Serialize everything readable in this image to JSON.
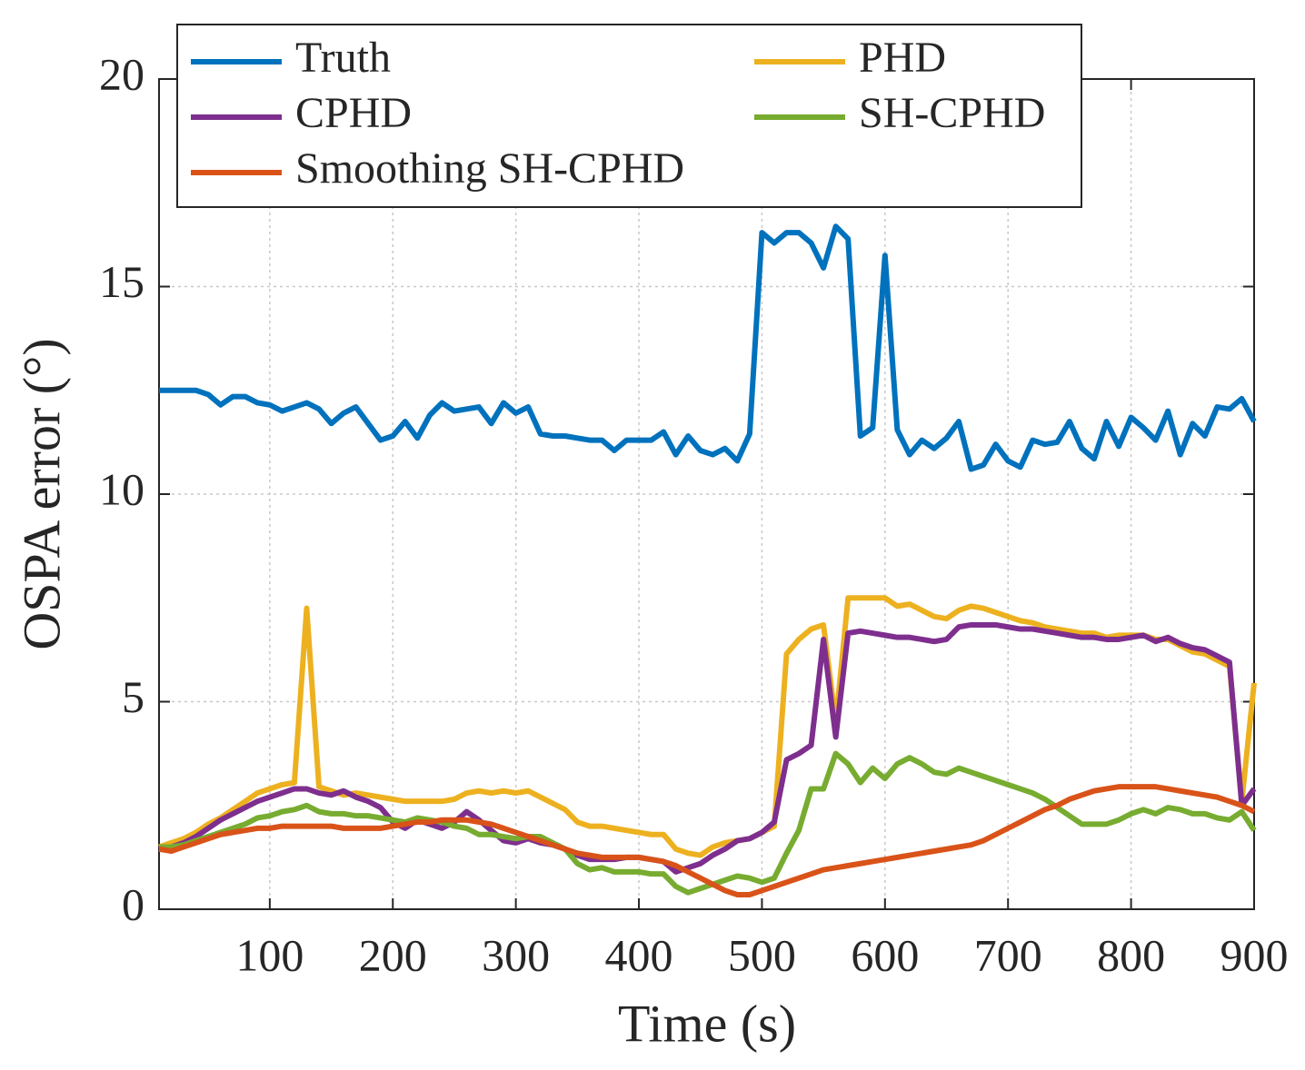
{
  "chart_data": {
    "type": "line",
    "xlabel": "Time (s)",
    "ylabel": "OSPA error (°)",
    "x": [
      10,
      20,
      30,
      40,
      50,
      60,
      70,
      80,
      90,
      100,
      110,
      120,
      130,
      140,
      150,
      160,
      170,
      180,
      190,
      200,
      210,
      220,
      230,
      240,
      250,
      260,
      270,
      280,
      290,
      300,
      310,
      320,
      330,
      340,
      350,
      360,
      370,
      380,
      390,
      400,
      410,
      420,
      430,
      440,
      450,
      460,
      470,
      480,
      490,
      500,
      510,
      520,
      530,
      540,
      550,
      560,
      570,
      580,
      590,
      600,
      610,
      620,
      630,
      640,
      650,
      660,
      670,
      680,
      690,
      700,
      710,
      720,
      730,
      740,
      750,
      760,
      770,
      780,
      790,
      800,
      810,
      820,
      830,
      840,
      850,
      860,
      870,
      880,
      890,
      900
    ],
    "series": [
      {
        "name": "Truth",
        "color": "#0072bd",
        "values": [
          12.5,
          12.5,
          12.5,
          12.5,
          12.4,
          12.15,
          12.35,
          12.35,
          12.2,
          12.15,
          12.0,
          12.1,
          12.2,
          12.05,
          11.7,
          11.95,
          12.1,
          11.7,
          11.3,
          11.4,
          11.75,
          11.35,
          11.9,
          12.2,
          12.0,
          12.05,
          12.1,
          11.7,
          12.2,
          11.95,
          12.1,
          11.45,
          11.4,
          11.4,
          11.35,
          11.3,
          11.3,
          11.05,
          11.3,
          11.3,
          11.3,
          11.5,
          10.95,
          11.4,
          11.05,
          10.95,
          11.1,
          10.8,
          11.45,
          16.3,
          16.05,
          16.3,
          16.3,
          16.05,
          15.45,
          16.45,
          16.15,
          11.4,
          11.6,
          15.75,
          11.55,
          10.95,
          11.3,
          11.1,
          11.35,
          11.75,
          10.6,
          10.7,
          11.2,
          10.8,
          10.65,
          11.3,
          11.2,
          11.25,
          11.75,
          11.1,
          10.85,
          11.75,
          11.15,
          11.85,
          11.6,
          11.3,
          12.0,
          10.95,
          11.7,
          11.4,
          12.1,
          12.05,
          12.3,
          11.75
        ]
      },
      {
        "name": "PHD",
        "color": "#edb120",
        "values": [
          1.5,
          1.6,
          1.7,
          1.85,
          2.05,
          2.2,
          2.4,
          2.6,
          2.8,
          2.9,
          3.0,
          3.05,
          7.25,
          2.95,
          2.85,
          2.75,
          2.8,
          2.75,
          2.7,
          2.65,
          2.6,
          2.6,
          2.6,
          2.6,
          2.65,
          2.8,
          2.85,
          2.8,
          2.85,
          2.8,
          2.85,
          2.7,
          2.55,
          2.4,
          2.1,
          2.0,
          2.0,
          1.95,
          1.9,
          1.85,
          1.8,
          1.8,
          1.45,
          1.35,
          1.3,
          1.5,
          1.6,
          1.65,
          1.7,
          1.85,
          2.0,
          6.15,
          6.5,
          6.75,
          6.85,
          4.5,
          7.5,
          7.5,
          7.5,
          7.5,
          7.3,
          7.35,
          7.2,
          7.05,
          7.0,
          7.2,
          7.3,
          7.25,
          7.15,
          7.05,
          6.95,
          6.9,
          6.8,
          6.75,
          6.7,
          6.65,
          6.65,
          6.55,
          6.6,
          6.6,
          6.6,
          6.5,
          6.5,
          6.35,
          6.2,
          6.15,
          6.0,
          5.85,
          2.6,
          5.45
        ]
      },
      {
        "name": "CPHD",
        "color": "#7e2f8e",
        "values": [
          1.45,
          1.5,
          1.6,
          1.75,
          1.95,
          2.15,
          2.3,
          2.45,
          2.6,
          2.7,
          2.8,
          2.9,
          2.9,
          2.8,
          2.75,
          2.85,
          2.7,
          2.6,
          2.45,
          2.1,
          1.95,
          2.15,
          2.05,
          1.95,
          2.1,
          2.35,
          2.15,
          1.9,
          1.65,
          1.6,
          1.7,
          1.6,
          1.55,
          1.45,
          1.3,
          1.2,
          1.2,
          1.2,
          1.25,
          1.25,
          1.2,
          1.15,
          0.9,
          1.0,
          1.1,
          1.3,
          1.45,
          1.65,
          1.7,
          1.85,
          2.1,
          3.6,
          3.75,
          3.95,
          6.5,
          4.15,
          6.65,
          6.7,
          6.65,
          6.6,
          6.55,
          6.55,
          6.5,
          6.45,
          6.5,
          6.8,
          6.85,
          6.85,
          6.85,
          6.8,
          6.75,
          6.75,
          6.7,
          6.65,
          6.6,
          6.55,
          6.55,
          6.5,
          6.5,
          6.55,
          6.6,
          6.45,
          6.55,
          6.4,
          6.3,
          6.25,
          6.1,
          5.95,
          2.5,
          2.9
        ]
      },
      {
        "name": "SH-CPHD",
        "color": "#77ac30",
        "values": [
          1.5,
          1.5,
          1.55,
          1.65,
          1.75,
          1.85,
          1.95,
          2.05,
          2.2,
          2.25,
          2.35,
          2.4,
          2.5,
          2.35,
          2.3,
          2.3,
          2.25,
          2.25,
          2.2,
          2.15,
          2.1,
          2.2,
          2.15,
          2.1,
          2.0,
          1.95,
          1.8,
          1.8,
          1.75,
          1.7,
          1.75,
          1.75,
          1.6,
          1.45,
          1.1,
          0.95,
          1.0,
          0.9,
          0.9,
          0.9,
          0.85,
          0.85,
          0.55,
          0.4,
          0.5,
          0.6,
          0.7,
          0.8,
          0.75,
          0.65,
          0.75,
          1.35,
          1.9,
          2.9,
          2.9,
          3.75,
          3.5,
          3.05,
          3.4,
          3.15,
          3.5,
          3.65,
          3.5,
          3.3,
          3.25,
          3.4,
          3.3,
          3.2,
          3.1,
          3.0,
          2.9,
          2.8,
          2.65,
          2.45,
          2.25,
          2.05,
          2.05,
          2.05,
          2.15,
          2.3,
          2.4,
          2.3,
          2.45,
          2.4,
          2.3,
          2.3,
          2.2,
          2.15,
          2.35,
          1.9
        ]
      },
      {
        "name": "Smoothing SH-CPHD",
        "color": "#d95319",
        "values": [
          1.45,
          1.4,
          1.5,
          1.6,
          1.7,
          1.8,
          1.85,
          1.9,
          1.95,
          1.95,
          2.0,
          2.0,
          2.0,
          2.0,
          2.0,
          1.95,
          1.95,
          1.95,
          1.95,
          2.0,
          2.05,
          2.1,
          2.1,
          2.15,
          2.15,
          2.15,
          2.1,
          2.05,
          1.95,
          1.85,
          1.75,
          1.65,
          1.55,
          1.45,
          1.35,
          1.3,
          1.25,
          1.25,
          1.25,
          1.25,
          1.2,
          1.15,
          1.05,
          0.9,
          0.75,
          0.6,
          0.45,
          0.35,
          0.35,
          0.45,
          0.55,
          0.65,
          0.75,
          0.85,
          0.95,
          1.0,
          1.05,
          1.1,
          1.15,
          1.2,
          1.25,
          1.3,
          1.35,
          1.4,
          1.45,
          1.5,
          1.55,
          1.65,
          1.8,
          1.95,
          2.1,
          2.25,
          2.4,
          2.5,
          2.65,
          2.75,
          2.85,
          2.9,
          2.95,
          2.95,
          2.95,
          2.95,
          2.9,
          2.85,
          2.8,
          2.75,
          2.7,
          2.6,
          2.5,
          2.35
        ]
      }
    ],
    "xlim": [
      10,
      900
    ],
    "xticks": [
      100,
      200,
      300,
      400,
      500,
      600,
      700,
      800,
      900
    ],
    "ylim": [
      0,
      20
    ],
    "yticks": [
      0,
      5,
      10,
      15,
      20
    ],
    "grid": true,
    "legend": "upper left"
  }
}
